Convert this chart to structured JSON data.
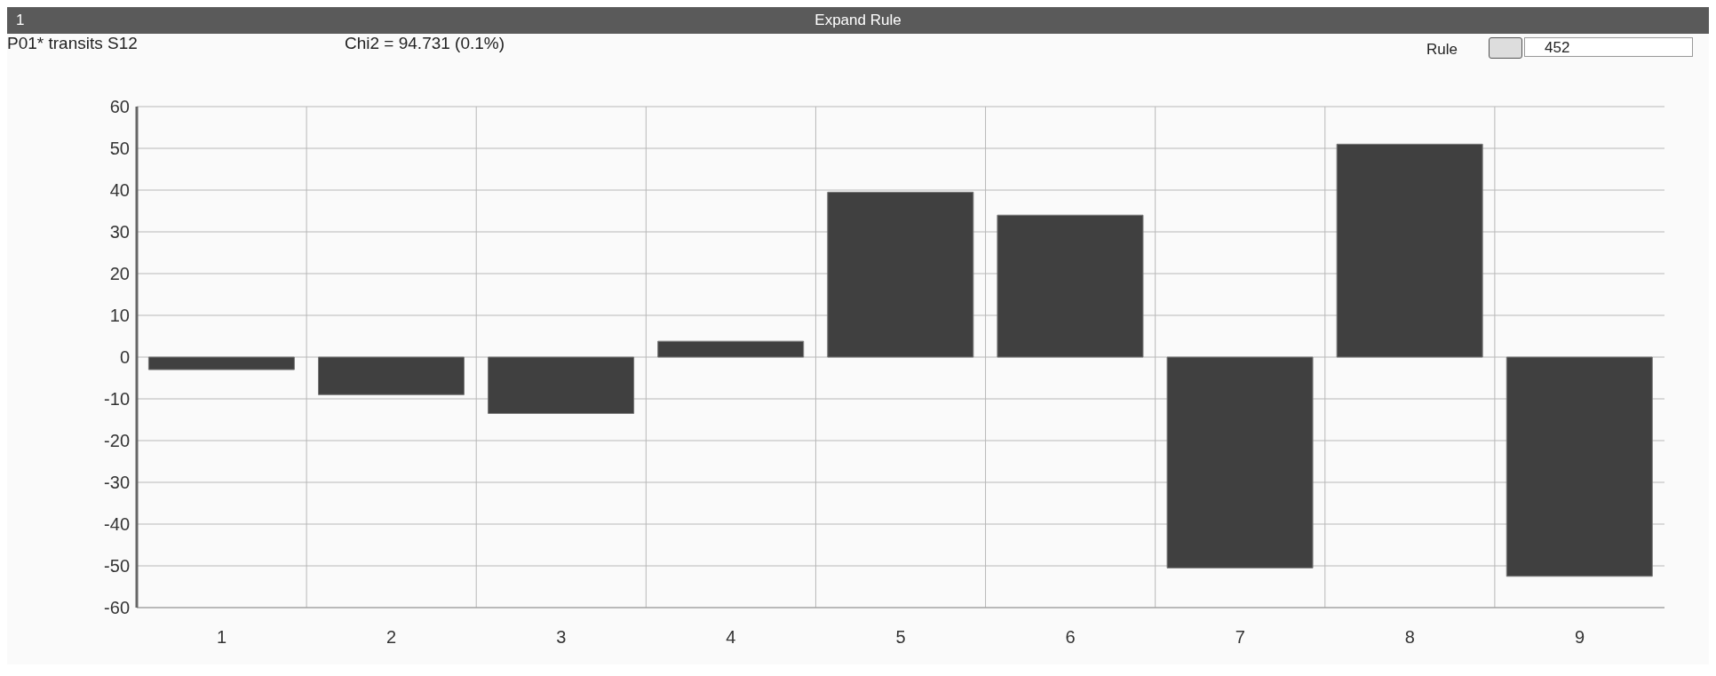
{
  "chart_data": {
    "type": "bar",
    "title": "Expand Rule",
    "annotations": [
      "1",
      "P01* transits S12",
      "Chi2 = 94.731 (0.1%)",
      "Rule",
      "452"
    ],
    "categories": [
      "1",
      "2",
      "3",
      "4",
      "5",
      "6",
      "7",
      "8",
      "9"
    ],
    "values": [
      -3,
      -9,
      -13.5,
      3.8,
      39.5,
      34,
      -50.5,
      51,
      -52.5
    ],
    "color": "#404040",
    "ylim": [
      -60,
      60
    ],
    "yticks": [
      -60,
      -50,
      -40,
      -30,
      -20,
      -10,
      0,
      10,
      20,
      30,
      40,
      50,
      60
    ],
    "grid": true
  }
}
